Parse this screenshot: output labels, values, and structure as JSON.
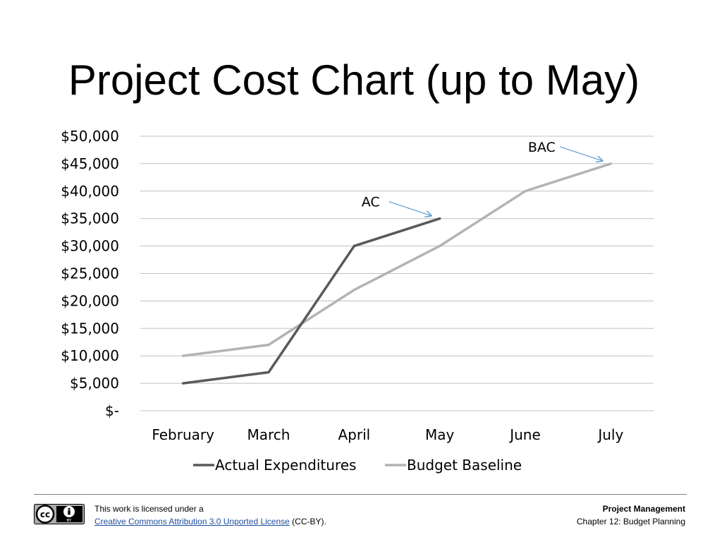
{
  "slide": {
    "title": "Project Cost Chart (up to May)"
  },
  "chart_data": {
    "type": "line",
    "title": "",
    "xlabel": "",
    "ylabel": "",
    "categories": [
      "February",
      "March",
      "April",
      "May",
      "June",
      "July"
    ],
    "y_ticks": [
      "$-",
      "$5,000",
      "$10,000",
      "$15,000",
      "$20,000",
      "$25,000",
      "$30,000",
      "$35,000",
      "$40,000",
      "$45,000",
      "$50,000"
    ],
    "ylim": [
      0,
      50000
    ],
    "grid": true,
    "legend_position": "bottom",
    "series": [
      {
        "name": "Actual Expenditures",
        "color": "#595959",
        "values": [
          5000,
          7000,
          30000,
          35000,
          null,
          null
        ]
      },
      {
        "name": "Budget Baseline",
        "color": "#b3b3b3",
        "values": [
          10000,
          12000,
          22000,
          30000,
          40000,
          45000
        ]
      }
    ],
    "annotations": [
      {
        "label": "AC",
        "target_category": "May",
        "target_value": 35000,
        "arrow_color": "#5b9bd5"
      },
      {
        "label": "BAC",
        "target_category": "July",
        "target_value": 45000,
        "arrow_color": "#5b9bd5"
      }
    ]
  },
  "footer": {
    "license_prefix": "This work is licensed under a",
    "license_link": "Creative Commons Attribution 3.0 Unported License",
    "license_suffix": "(CC-BY).",
    "course_name": "Project Management",
    "chapter": "Chapter 12: Budget Planning",
    "badge": {
      "cc": "cc",
      "by": "BY"
    }
  }
}
